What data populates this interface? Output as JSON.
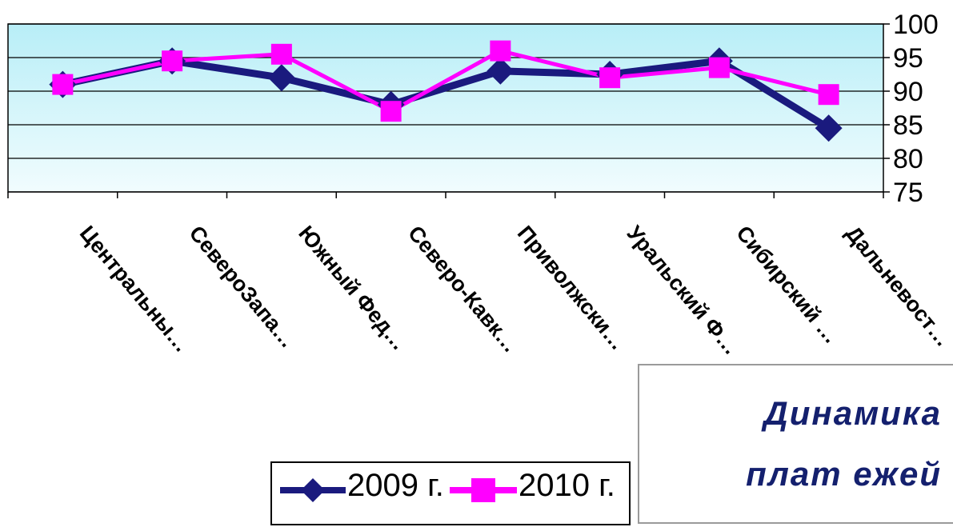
{
  "chart_data": {
    "type": "line",
    "categories": [
      "Центральны…",
      "СевероЗапа…",
      "Южный Фед…",
      "Северо-Кавк…",
      "Приволжски…",
      "Уральский Ф…",
      "Сибирский …",
      "Дальневост…"
    ],
    "series": [
      {
        "name": "2009 г.",
        "values": [
          91,
          94.5,
          92,
          88,
          93,
          92.5,
          94.5,
          84.5
        ],
        "color": "#1a1a7e",
        "marker": "diamond"
      },
      {
        "name": "2010 г.",
        "values": [
          91,
          94.5,
          95.5,
          87,
          96,
          92,
          93.5,
          89.5
        ],
        "color": "#ff00ff",
        "marker": "square"
      }
    ],
    "yticks": [
      "75",
      "80",
      "85",
      "90",
      "95",
      "100"
    ],
    "ylim": [
      75,
      100
    ],
    "grid": "horizontal",
    "legend_position": "bottom",
    "background": "#dff7fb"
  },
  "title": {
    "line1": "Динамика",
    "line2": "плат ежей"
  }
}
